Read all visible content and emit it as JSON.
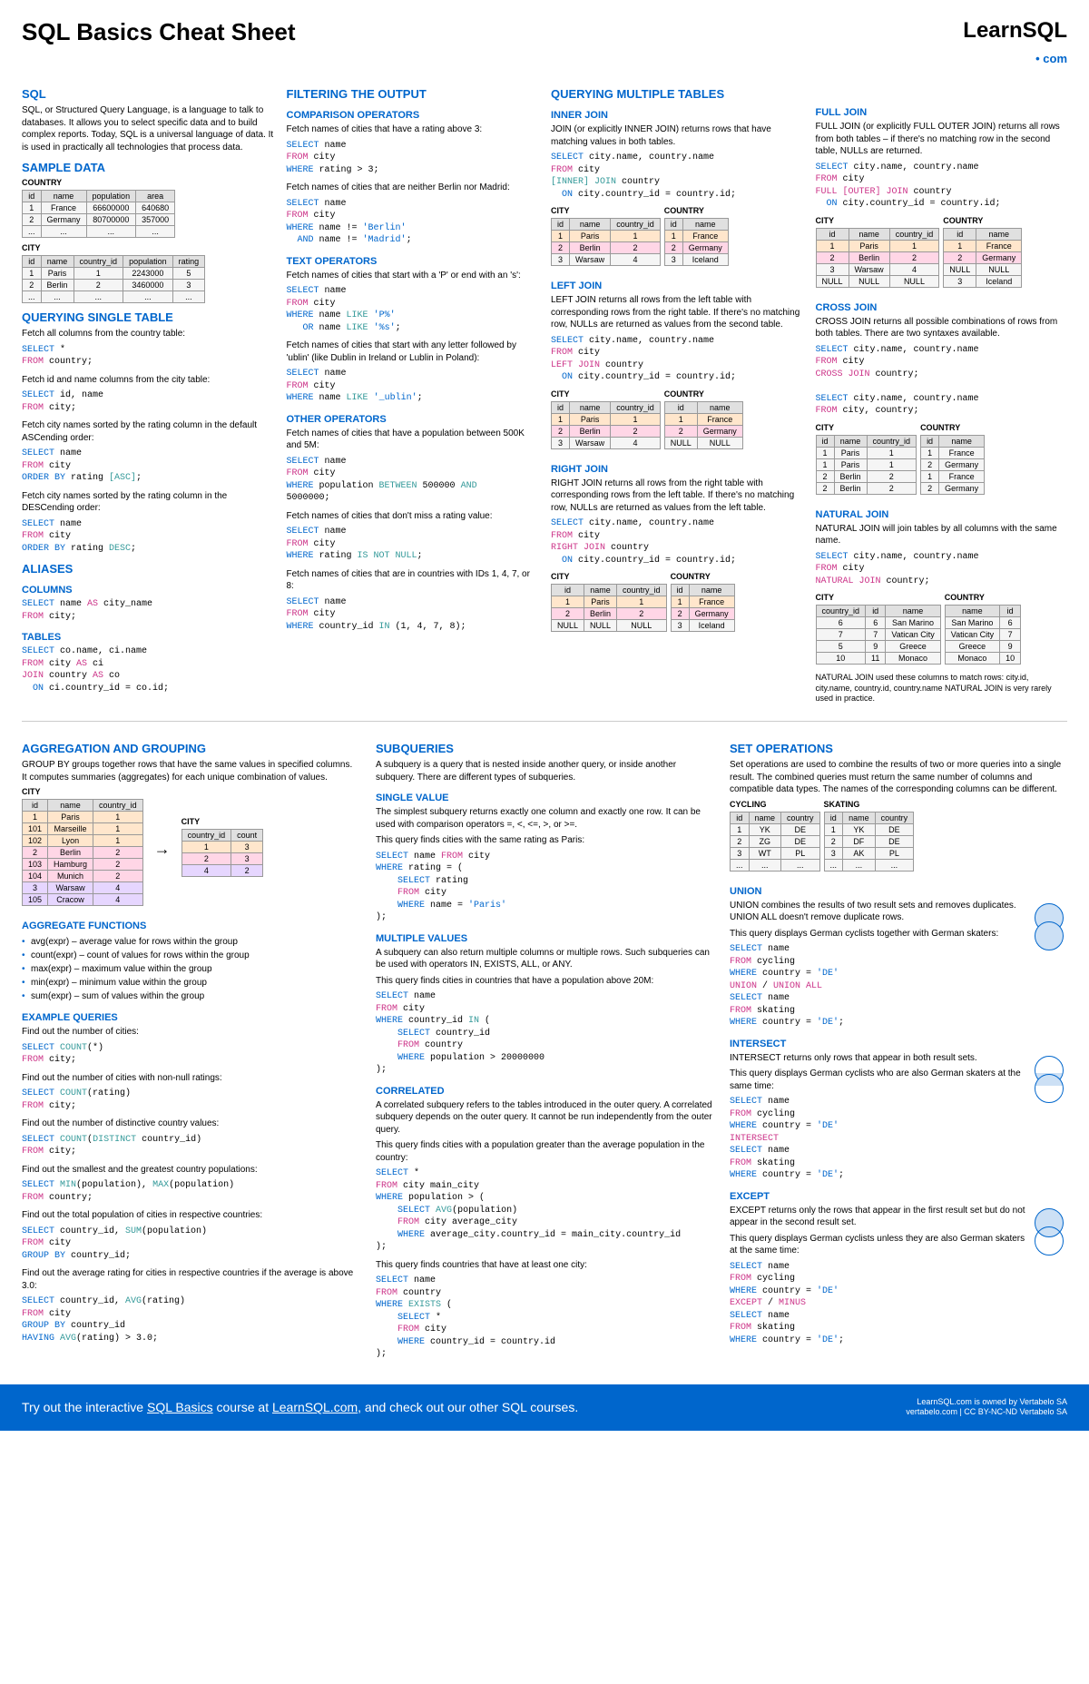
{
  "header": {
    "title": "SQL Basics Cheat Sheet",
    "logo_main": "LearnSQL",
    "logo_sub": ".com"
  },
  "col1": {
    "sql_h": "SQL",
    "sql_p": "SQL, or Structured Query Language, is a language to talk to databases. It allows you to select specific data and to build complex reports. Today, SQL is a universal language of data. It is used in practically all technologies that process data.",
    "sample_h": "SAMPLE DATA",
    "country_lbl": "COUNTRY",
    "city_lbl": "CITY",
    "country_tbl": {
      "cols": [
        "id",
        "name",
        "population",
        "area"
      ],
      "rows": [
        [
          "1",
          "France",
          "66600000",
          "640680"
        ],
        [
          "2",
          "Germany",
          "80700000",
          "357000"
        ],
        [
          "...",
          "...",
          "...",
          "..."
        ]
      ]
    },
    "city_tbl": {
      "cols": [
        "id",
        "name",
        "country_id",
        "population",
        "rating"
      ],
      "rows": [
        [
          "1",
          "Paris",
          "1",
          "2243000",
          "5"
        ],
        [
          "2",
          "Berlin",
          "2",
          "3460000",
          "3"
        ],
        [
          "...",
          "...",
          "...",
          "...",
          "..."
        ]
      ]
    },
    "qst_h": "QUERYING SINGLE TABLE",
    "qst_p1": "Fetch all columns from the country table:",
    "qst_p2": "Fetch id and name columns from the city table:",
    "qst_p3": "Fetch city names sorted by the rating column in the default ASCending order:",
    "qst_p4": "Fetch city names sorted by the rating column in the DESCending order:",
    "alias_h": "ALIASES",
    "alias_col_h": "COLUMNS",
    "alias_tbl_h": "TABLES"
  },
  "col2": {
    "filter_h": "FILTERING THE OUTPUT",
    "comp_h": "COMPARISON OPERATORS",
    "comp_p1": "Fetch names of cities that have a rating above 3:",
    "comp_p2": "Fetch names of cities that are neither Berlin nor Madrid:",
    "text_h": "TEXT OPERATORS",
    "text_p1": "Fetch names of cities that start with a 'P' or end with an 's':",
    "text_p2": "Fetch names of cities that start with any letter followed by 'ublin' (like Dublin in Ireland or Lublin in Poland):",
    "other_h": "OTHER OPERATORS",
    "other_p1": "Fetch names of cities that have a population between 500K and 5M:",
    "other_p2": "Fetch names of cities that don't miss a rating value:",
    "other_p3": "Fetch names of cities that are in countries with IDs 1, 4, 7, or 8:"
  },
  "col34": {
    "qmt_h": "QUERYING MULTIPLE TABLES",
    "inner_h": "INNER JOIN",
    "inner_p": "JOIN (or explicitly INNER JOIN) returns rows that have matching values in both tables.",
    "full_h": "FULL JOIN",
    "full_p": "FULL JOIN (or explicitly FULL OUTER JOIN) returns all rows from both tables – if there's no matching row in the second table, NULLs are returned.",
    "left_h": "LEFT JOIN",
    "left_p": "LEFT JOIN returns all rows from the left table with corresponding rows from the right table. If there's no matching row, NULLs are returned as values from the second table.",
    "cross_h": "CROSS JOIN",
    "cross_p": "CROSS JOIN returns all possible combinations of rows from both tables. There are two syntaxes available.",
    "right_h": "RIGHT JOIN",
    "right_p": "RIGHT JOIN returns all rows from the right table with corresponding rows from the left table. If there's no matching row, NULLs are returned as values from the left table.",
    "natural_h": "NATURAL JOIN",
    "natural_p": "NATURAL JOIN will join tables by all columns with the same name.",
    "natural_note": "NATURAL JOIN used these columns to match rows: city.id, city.name, country.id, country.name NATURAL JOIN is very rarely used in practice.",
    "inner_city": {
      "cols": [
        "id",
        "name",
        "country_id"
      ],
      "rows": [
        [
          "1",
          "Paris",
          "1"
        ],
        [
          "2",
          "Berlin",
          "2"
        ],
        [
          "3",
          "Warsaw",
          "4"
        ]
      ]
    },
    "inner_country": {
      "cols": [
        "id",
        "name"
      ],
      "rows": [
        [
          "1",
          "France"
        ],
        [
          "2",
          "Germany"
        ],
        [
          "3",
          "Iceland"
        ]
      ]
    },
    "full_city": {
      "cols": [
        "id",
        "name",
        "country_id"
      ],
      "rows": [
        [
          "1",
          "Paris",
          "1"
        ],
        [
          "2",
          "Berlin",
          "2"
        ],
        [
          "3",
          "Warsaw",
          "4"
        ],
        [
          "NULL",
          "NULL",
          "NULL"
        ]
      ]
    },
    "full_country": {
      "cols": [
        "id",
        "name"
      ],
      "rows": [
        [
          "1",
          "France"
        ],
        [
          "2",
          "Germany"
        ],
        [
          "NULL",
          "NULL"
        ],
        [
          "3",
          "Iceland"
        ]
      ]
    },
    "left_city": {
      "cols": [
        "id",
        "name",
        "country_id"
      ],
      "rows": [
        [
          "1",
          "Paris",
          "1"
        ],
        [
          "2",
          "Berlin",
          "2"
        ],
        [
          "3",
          "Warsaw",
          "4"
        ]
      ]
    },
    "left_country": {
      "cols": [
        "id",
        "name"
      ],
      "rows": [
        [
          "1",
          "France"
        ],
        [
          "2",
          "Germany"
        ],
        [
          "NULL",
          "NULL"
        ]
      ]
    },
    "cross_city": {
      "cols": [
        "id",
        "name",
        "country_id"
      ],
      "rows": [
        [
          "1",
          "Paris",
          "1"
        ],
        [
          "1",
          "Paris",
          "1"
        ],
        [
          "2",
          "Berlin",
          "2"
        ],
        [
          "2",
          "Berlin",
          "2"
        ]
      ]
    },
    "cross_country": {
      "cols": [
        "id",
        "name"
      ],
      "rows": [
        [
          "1",
          "France"
        ],
        [
          "2",
          "Germany"
        ],
        [
          "1",
          "France"
        ],
        [
          "2",
          "Germany"
        ]
      ]
    },
    "right_city": {
      "cols": [
        "id",
        "name",
        "country_id"
      ],
      "rows": [
        [
          "1",
          "Paris",
          "1"
        ],
        [
          "2",
          "Berlin",
          "2"
        ],
        [
          "NULL",
          "NULL",
          "NULL"
        ]
      ]
    },
    "right_country": {
      "cols": [
        "id",
        "name"
      ],
      "rows": [
        [
          "1",
          "France"
        ],
        [
          "2",
          "Germany"
        ],
        [
          "3",
          "Iceland"
        ]
      ]
    },
    "natural_city": {
      "cols": [
        "country_id",
        "id",
        "name"
      ],
      "rows": [
        [
          "6",
          "6",
          "San Marino"
        ],
        [
          "7",
          "7",
          "Vatican City"
        ],
        [
          "5",
          "9",
          "Greece"
        ],
        [
          "10",
          "11",
          "Monaco"
        ]
      ]
    },
    "natural_country": {
      "cols": [
        "name",
        "id"
      ],
      "rows": [
        [
          "San Marino",
          "6"
        ],
        [
          "Vatican City",
          "7"
        ],
        [
          "Greece",
          "9"
        ],
        [
          "Monaco",
          "10"
        ]
      ]
    }
  },
  "p2col1": {
    "agg_h": "AGGREGATION AND GROUPING",
    "agg_p": "GROUP BY groups together rows that have the same values in specified columns.\nIt computes summaries (aggregates) for each unique combination of values.",
    "city_lbl": "CITY",
    "src_tbl": {
      "cols": [
        "id",
        "name",
        "country_id"
      ],
      "rows": [
        [
          "1",
          "Paris",
          "1"
        ],
        [
          "101",
          "Marseille",
          "1"
        ],
        [
          "102",
          "Lyon",
          "1"
        ],
        [
          "2",
          "Berlin",
          "2"
        ],
        [
          "103",
          "Hamburg",
          "2"
        ],
        [
          "104",
          "Munich",
          "2"
        ],
        [
          "3",
          "Warsaw",
          "4"
        ],
        [
          "105",
          "Cracow",
          "4"
        ]
      ]
    },
    "dst_tbl": {
      "cols": [
        "country_id",
        "count"
      ],
      "rows": [
        [
          "1",
          "3"
        ],
        [
          "2",
          "3"
        ],
        [
          "4",
          "2"
        ]
      ]
    },
    "aggfn_h": "AGGREGATE FUNCTIONS",
    "fns": [
      "avg(expr) – average value for rows within the group",
      "count(expr) – count of values for rows within the group",
      "max(expr) – maximum value within the group",
      "min(expr) – minimum value within the group",
      "sum(expr) – sum of values within the group"
    ],
    "ex_h": "EXAMPLE QUERIES",
    "ex_p1": "Find out the number of cities:",
    "ex_p2": "Find out the number of cities with non-null ratings:",
    "ex_p3": "Find out the number of distinctive country values:",
    "ex_p4": "Find out the smallest and the greatest country populations:",
    "ex_p5": "Find out the total population of cities in respective countries:",
    "ex_p6": "Find out the average rating for cities in respective countries if the average is above 3.0:"
  },
  "p2col2": {
    "sub_h": "SUBQUERIES",
    "sub_p": "A subquery is a query that is nested inside another query, or inside another subquery. There are different types of subqueries.",
    "sv_h": "SINGLE VALUE",
    "sv_p": "The simplest subquery returns exactly one column and exactly one row. It can be used with comparison operators =, <, <=, >, or >=.",
    "sv_p2": "This query finds cities with the same rating as Paris:",
    "mv_h": "MULTIPLE VALUES",
    "mv_p": "A subquery can also return multiple columns or multiple rows. Such subqueries can be used with operators IN, EXISTS, ALL, or ANY.",
    "mv_p2": "This query finds cities in countries that have a population above 20M:",
    "cor_h": "CORRELATED",
    "cor_p": "A correlated subquery refers to the tables introduced in the outer query. A correlated subquery depends on the outer query. It cannot be run independently from the outer query.",
    "cor_p2": "This query finds cities with a population greater than the average population in the country:",
    "cor_p3": "This query finds countries that have at least one city:"
  },
  "p2col3": {
    "set_h": "SET OPERATIONS",
    "set_p": "Set operations are used to combine the results of two or more queries into a single result. The combined queries must return the same number of columns and compatible data types. The names of the corresponding columns can be different.",
    "cyc_lbl": "CYCLING",
    "skt_lbl": "SKATING",
    "cyc_tbl": {
      "cols": [
        "id",
        "name",
        "country"
      ],
      "rows": [
        [
          "1",
          "YK",
          "DE"
        ],
        [
          "2",
          "ZG",
          "DE"
        ],
        [
          "3",
          "WT",
          "PL"
        ],
        [
          "...",
          "...",
          "..."
        ]
      ]
    },
    "skt_tbl": {
      "cols": [
        "id",
        "name",
        "country"
      ],
      "rows": [
        [
          "1",
          "YK",
          "DE"
        ],
        [
          "2",
          "DF",
          "DE"
        ],
        [
          "3",
          "AK",
          "PL"
        ],
        [
          "...",
          "...",
          "..."
        ]
      ]
    },
    "union_h": "UNION",
    "union_p": "UNION combines the results of two result sets and removes duplicates. UNION ALL doesn't remove duplicate rows.",
    "union_p2": "This query displays German cyclists together with German skaters:",
    "int_h": "INTERSECT",
    "int_p": "INTERSECT returns only rows that appear in both result sets.",
    "int_p2": "This query displays German cyclists who are also German skaters at the same time:",
    "exc_h": "EXCEPT",
    "exc_p": "EXCEPT returns only the rows that appear in the first result set but do not appear in the second result set.",
    "exc_p2": "This query displays German cyclists unless they are also German skaters at the same time:"
  },
  "footer": {
    "left": "Try out the interactive SQL Basics course at LearnSQL.com, and check out our other SQL courses.",
    "r1": "LearnSQL.com is owned by Vertabelo SA",
    "r2": "vertabelo.com | CC BY-NC-ND Vertabelo SA"
  }
}
